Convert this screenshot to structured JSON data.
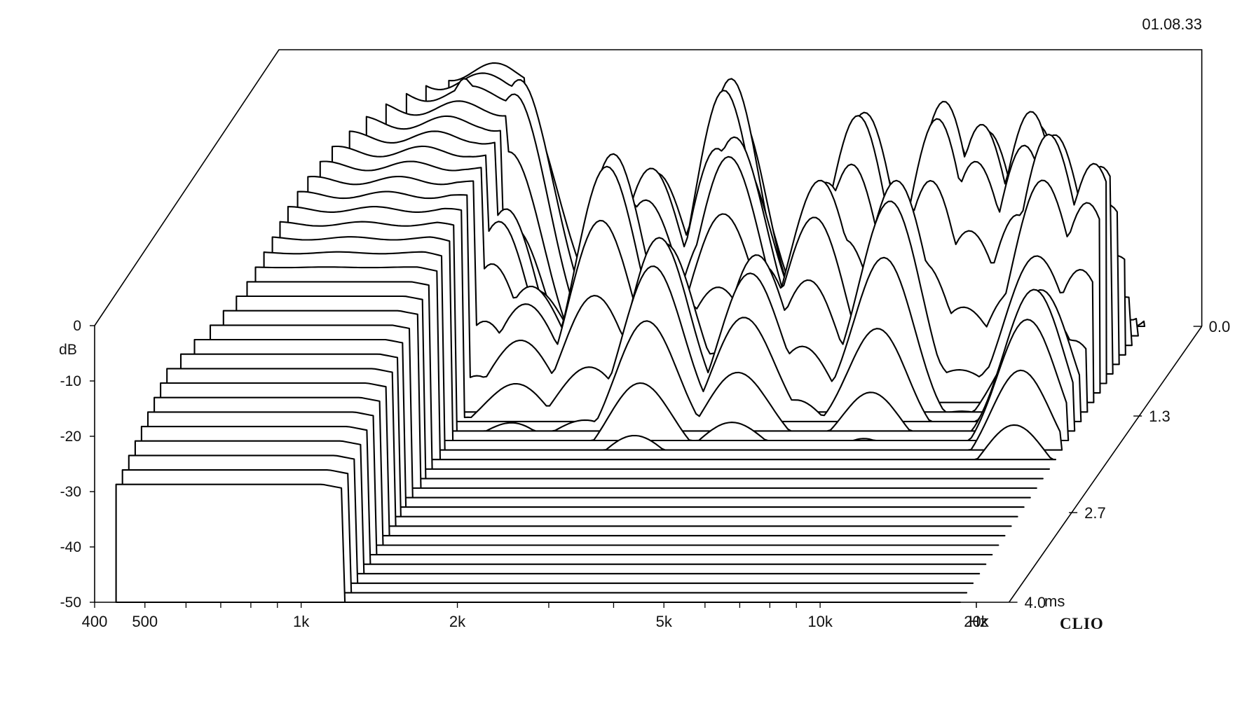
{
  "header": {
    "date_stamp": "01.08.33"
  },
  "brand": {
    "logo_text": "CLIO"
  },
  "chart_data": {
    "type": "waterfall",
    "x_scale": "log",
    "x_range_hz": [
      400,
      24000
    ],
    "x_ticks": [
      {
        "value": 400,
        "label": "400"
      },
      {
        "value": 500,
        "label": "500"
      },
      {
        "value": 1000,
        "label": "1k"
      },
      {
        "value": 2000,
        "label": "2k"
      },
      {
        "value": 5000,
        "label": "5k"
      },
      {
        "value": 10000,
        "label": "10k"
      },
      {
        "value": 20000,
        "label": "20k"
      }
    ],
    "x_unit_label": "Hz",
    "y_range_db": [
      -50,
      0
    ],
    "y_label": "dB",
    "y_ticks": [
      {
        "value": 0,
        "label": "0"
      },
      {
        "value": -10,
        "label": "-10"
      },
      {
        "value": -20,
        "label": "-20"
      },
      {
        "value": -30,
        "label": "-30"
      },
      {
        "value": -40,
        "label": "-40"
      },
      {
        "value": -50,
        "label": "-50"
      }
    ],
    "time_range_ms": [
      0,
      4.0
    ],
    "time_ticks": [
      {
        "value": 0.0,
        "label": "0.0"
      },
      {
        "value": 1.3,
        "label": "1.3"
      },
      {
        "value": 2.7,
        "label": "2.7"
      },
      {
        "value": 4.0,
        "label": "4.0"
      }
    ],
    "time_unit_label": "ms",
    "slice_count": 30,
    "slice_start_freqs_hz": [
      850,
      790,
      745,
      700,
      660,
      630,
      600,
      585,
      570,
      560,
      552,
      548,
      545,
      540,
      535,
      530,
      520,
      505,
      490,
      470,
      455,
      440,
      440,
      440,
      440,
      440,
      440,
      440,
      440,
      440
    ],
    "surface_nodes": [
      {
        "f": 860,
        "t": 0.0,
        "db": -8.0
      },
      {
        "f": 940,
        "t": 0.6,
        "db": -10.0
      },
      {
        "f": 1250,
        "t": 0.75,
        "db": -18.0
      },
      {
        "f": 1500,
        "t": 1.0,
        "db": -27.0
      },
      {
        "f": 960,
        "t": 0.25,
        "db": -2.0
      },
      {
        "f": 1200,
        "t": 0.2,
        "db": -1.0
      },
      {
        "f": 2100,
        "t": 0.9,
        "db": -5.0
      },
      {
        "f": 2350,
        "t": 0.55,
        "db": -12.0
      },
      {
        "f": 2800,
        "t": 1.25,
        "db": -15.0
      },
      {
        "f": 3150,
        "t": 0.35,
        "db": -1.0
      },
      {
        "f": 3400,
        "t": 0.6,
        "db": -6.0
      },
      {
        "f": 4200,
        "t": 1.15,
        "db": -20.0
      },
      {
        "f": 5200,
        "t": 0.8,
        "db": -10.0
      },
      {
        "f": 5800,
        "t": 0.5,
        "db": -3.0
      },
      {
        "f": 7500,
        "t": 1.0,
        "db": -8.0
      },
      {
        "f": 8500,
        "t": 0.6,
        "db": -0.5
      },
      {
        "f": 10200,
        "t": 0.55,
        "db": -5.0
      },
      {
        "f": 12500,
        "t": 0.55,
        "db": -3.0
      },
      {
        "f": 14500,
        "t": 0.8,
        "db": -2.0
      },
      {
        "f": 15500,
        "t": 1.5,
        "db": -20.0
      },
      {
        "f": 17500,
        "t": 0.8,
        "db": -8.0
      },
      {
        "f": 23000,
        "t": 0.6,
        "db": -3.0
      }
    ]
  }
}
